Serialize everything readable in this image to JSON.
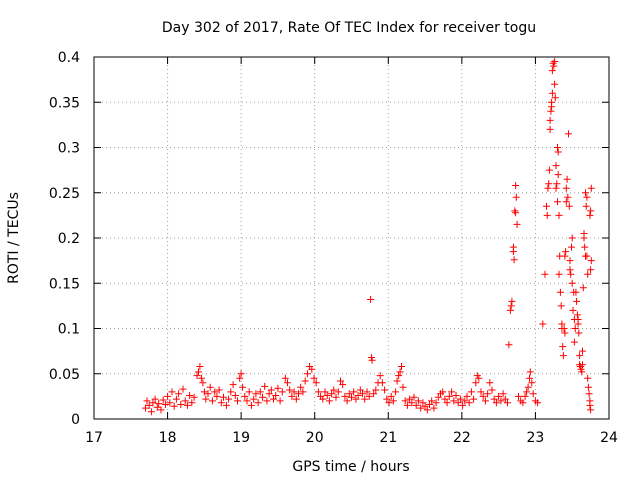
{
  "chart_data": {
    "type": "scatter",
    "title": "Day 302 of 2017, Rate Of TEC Index for receiver togu",
    "xlabel": "GPS time / hours",
    "ylabel": "ROTI / TECUs",
    "xlim": [
      17,
      24
    ],
    "ylim": [
      0,
      0.4
    ],
    "x_ticks": [
      17,
      18,
      19,
      20,
      21,
      22,
      23,
      24
    ],
    "y_ticks": [
      0,
      0.05,
      0.1,
      0.15,
      0.2,
      0.25,
      0.3,
      0.35,
      0.4
    ],
    "x_tick_labels": [
      "17",
      "18",
      "19",
      "20",
      "21",
      "22",
      "23",
      "24"
    ],
    "y_tick_labels": [
      "0",
      "0.05",
      "0.1",
      "0.15",
      "0.2",
      "0.25",
      "0.3",
      "0.35",
      "0.4"
    ],
    "grid": true,
    "marker": "plus",
    "color": "#ff0000",
    "series": [
      {
        "points": [
          [
            17.7,
            0.012
          ],
          [
            17.72,
            0.02
          ],
          [
            17.75,
            0.015
          ],
          [
            17.78,
            0.008
          ],
          [
            17.8,
            0.018
          ],
          [
            17.83,
            0.022
          ],
          [
            17.86,
            0.013
          ],
          [
            17.88,
            0.017
          ],
          [
            17.91,
            0.01
          ],
          [
            17.94,
            0.021
          ],
          [
            17.97,
            0.016
          ],
          [
            18.0,
            0.025
          ],
          [
            18.03,
            0.018
          ],
          [
            18.06,
            0.03
          ],
          [
            18.09,
            0.014
          ],
          [
            18.12,
            0.022
          ],
          [
            18.15,
            0.028
          ],
          [
            18.18,
            0.016
          ],
          [
            18.21,
            0.033
          ],
          [
            18.24,
            0.02
          ],
          [
            18.27,
            0.015
          ],
          [
            18.3,
            0.026
          ],
          [
            18.33,
            0.018
          ],
          [
            18.36,
            0.024
          ],
          [
            18.4,
            0.048
          ],
          [
            18.42,
            0.052
          ],
          [
            18.44,
            0.058
          ],
          [
            18.46,
            0.045
          ],
          [
            18.48,
            0.04
          ],
          [
            18.5,
            0.03
          ],
          [
            18.52,
            0.022
          ],
          [
            18.55,
            0.028
          ],
          [
            18.58,
            0.035
          ],
          [
            18.61,
            0.02
          ],
          [
            18.64,
            0.03
          ],
          [
            18.67,
            0.025
          ],
          [
            18.7,
            0.032
          ],
          [
            18.73,
            0.018
          ],
          [
            18.76,
            0.024
          ],
          [
            18.8,
            0.015
          ],
          [
            18.83,
            0.022
          ],
          [
            18.86,
            0.03
          ],
          [
            18.89,
            0.038
          ],
          [
            18.92,
            0.026
          ],
          [
            18.95,
            0.02
          ],
          [
            18.98,
            0.045
          ],
          [
            19.0,
            0.05
          ],
          [
            19.02,
            0.035
          ],
          [
            19.05,
            0.025
          ],
          [
            19.08,
            0.02
          ],
          [
            19.11,
            0.03
          ],
          [
            19.14,
            0.015
          ],
          [
            19.17,
            0.022
          ],
          [
            19.2,
            0.028
          ],
          [
            19.23,
            0.018
          ],
          [
            19.26,
            0.03
          ],
          [
            19.29,
            0.024
          ],
          [
            19.32,
            0.036
          ],
          [
            19.35,
            0.02
          ],
          [
            19.38,
            0.028
          ],
          [
            19.41,
            0.032
          ],
          [
            19.44,
            0.022
          ],
          [
            19.47,
            0.026
          ],
          [
            19.5,
            0.034
          ],
          [
            19.53,
            0.02
          ],
          [
            19.56,
            0.03
          ],
          [
            19.6,
            0.045
          ],
          [
            19.63,
            0.04
          ],
          [
            19.66,
            0.032
          ],
          [
            19.69,
            0.025
          ],
          [
            19.72,
            0.03
          ],
          [
            19.75,
            0.022
          ],
          [
            19.78,
            0.028
          ],
          [
            19.81,
            0.035
          ],
          [
            19.84,
            0.03
          ],
          [
            19.87,
            0.042
          ],
          [
            19.9,
            0.05
          ],
          [
            19.93,
            0.058
          ],
          [
            19.96,
            0.055
          ],
          [
            19.99,
            0.045
          ],
          [
            20.02,
            0.04
          ],
          [
            20.05,
            0.03
          ],
          [
            20.08,
            0.025
          ],
          [
            20.11,
            0.022
          ],
          [
            20.14,
            0.03
          ],
          [
            20.17,
            0.026
          ],
          [
            20.2,
            0.02
          ],
          [
            20.23,
            0.028
          ],
          [
            20.26,
            0.032
          ],
          [
            20.29,
            0.024
          ],
          [
            20.32,
            0.03
          ],
          [
            20.35,
            0.042
          ],
          [
            20.38,
            0.038
          ],
          [
            20.41,
            0.025
          ],
          [
            20.44,
            0.02
          ],
          [
            20.47,
            0.028
          ],
          [
            20.5,
            0.024
          ],
          [
            20.53,
            0.03
          ],
          [
            20.56,
            0.022
          ],
          [
            20.59,
            0.026
          ],
          [
            20.62,
            0.032
          ],
          [
            20.65,
            0.028
          ],
          [
            20.68,
            0.022
          ],
          [
            20.71,
            0.03
          ],
          [
            20.74,
            0.025
          ],
          [
            20.76,
            0.132
          ],
          [
            20.77,
            0.068
          ],
          [
            20.78,
            0.065
          ],
          [
            20.8,
            0.028
          ],
          [
            20.83,
            0.032
          ],
          [
            20.86,
            0.04
          ],
          [
            20.89,
            0.048
          ],
          [
            20.92,
            0.04
          ],
          [
            20.95,
            0.032
          ],
          [
            20.98,
            0.022
          ],
          [
            21.01,
            0.018
          ],
          [
            21.04,
            0.025
          ],
          [
            21.07,
            0.02
          ],
          [
            21.1,
            0.03
          ],
          [
            21.12,
            0.042
          ],
          [
            21.14,
            0.048
          ],
          [
            21.16,
            0.052
          ],
          [
            21.18,
            0.058
          ],
          [
            21.2,
            0.035
          ],
          [
            21.23,
            0.02
          ],
          [
            21.26,
            0.015
          ],
          [
            21.29,
            0.022
          ],
          [
            21.32,
            0.018
          ],
          [
            21.35,
            0.024
          ],
          [
            21.38,
            0.015
          ],
          [
            21.41,
            0.02
          ],
          [
            21.44,
            0.012
          ],
          [
            21.47,
            0.018
          ],
          [
            21.5,
            0.014
          ],
          [
            21.53,
            0.01
          ],
          [
            21.56,
            0.016
          ],
          [
            21.59,
            0.02
          ],
          [
            21.62,
            0.012
          ],
          [
            21.65,
            0.018
          ],
          [
            21.68,
            0.024
          ],
          [
            21.71,
            0.028
          ],
          [
            21.74,
            0.03
          ],
          [
            21.77,
            0.022
          ],
          [
            21.8,
            0.018
          ],
          [
            21.83,
            0.025
          ],
          [
            21.86,
            0.03
          ],
          [
            21.89,
            0.02
          ],
          [
            21.92,
            0.026
          ],
          [
            21.95,
            0.018
          ],
          [
            21.98,
            0.022
          ],
          [
            22.01,
            0.015
          ],
          [
            22.04,
            0.02
          ],
          [
            22.07,
            0.025
          ],
          [
            22.1,
            0.018
          ],
          [
            22.13,
            0.03
          ],
          [
            22.16,
            0.022
          ],
          [
            22.19,
            0.04
          ],
          [
            22.21,
            0.048
          ],
          [
            22.23,
            0.045
          ],
          [
            22.26,
            0.03
          ],
          [
            22.29,
            0.025
          ],
          [
            22.32,
            0.02
          ],
          [
            22.35,
            0.028
          ],
          [
            22.38,
            0.04
          ],
          [
            22.41,
            0.032
          ],
          [
            22.44,
            0.022
          ],
          [
            22.47,
            0.018
          ],
          [
            22.5,
            0.025
          ],
          [
            22.53,
            0.02
          ],
          [
            22.56,
            0.028
          ],
          [
            22.59,
            0.022
          ],
          [
            22.62,
            0.018
          ],
          [
            22.64,
            0.082
          ],
          [
            22.66,
            0.12
          ],
          [
            22.67,
            0.125
          ],
          [
            22.68,
            0.13
          ],
          [
            22.7,
            0.185
          ],
          [
            22.7,
            0.19
          ],
          [
            22.71,
            0.176
          ],
          [
            22.72,
            0.23
          ],
          [
            22.73,
            0.228
          ],
          [
            22.73,
            0.258
          ],
          [
            22.74,
            0.245
          ],
          [
            22.75,
            0.215
          ],
          [
            22.77,
            0.025
          ],
          [
            22.8,
            0.02
          ],
          [
            22.83,
            0.018
          ],
          [
            22.86,
            0.025
          ],
          [
            22.88,
            0.03
          ],
          [
            22.9,
            0.035
          ],
          [
            22.92,
            0.045
          ],
          [
            22.93,
            0.052
          ],
          [
            22.95,
            0.04
          ],
          [
            22.97,
            0.028
          ],
          [
            23.0,
            0.02
          ],
          [
            23.03,
            0.018
          ],
          [
            23.1,
            0.105
          ],
          [
            23.13,
            0.16
          ],
          [
            23.15,
            0.235
          ],
          [
            23.16,
            0.225
          ],
          [
            23.17,
            0.255
          ],
          [
            23.18,
            0.26
          ],
          [
            23.19,
            0.275
          ],
          [
            23.2,
            0.32
          ],
          [
            23.2,
            0.33
          ],
          [
            23.21,
            0.34
          ],
          [
            23.22,
            0.345
          ],
          [
            23.22,
            0.35
          ],
          [
            23.23,
            0.36
          ],
          [
            23.23,
            0.385
          ],
          [
            23.24,
            0.393
          ],
          [
            23.25,
            0.39
          ],
          [
            23.26,
            0.395
          ],
          [
            23.26,
            0.37
          ],
          [
            23.27,
            0.355
          ],
          [
            23.28,
            0.28
          ],
          [
            23.28,
            0.255
          ],
          [
            23.29,
            0.26
          ],
          [
            23.3,
            0.24
          ],
          [
            23.3,
            0.3
          ],
          [
            23.31,
            0.295
          ],
          [
            23.31,
            0.27
          ],
          [
            23.32,
            0.225
          ],
          [
            23.32,
            0.16
          ],
          [
            23.33,
            0.18
          ],
          [
            23.34,
            0.14
          ],
          [
            23.35,
            0.125
          ],
          [
            23.36,
            0.105
          ],
          [
            23.36,
            0.1
          ],
          [
            23.37,
            0.08
          ],
          [
            23.38,
            0.07
          ],
          [
            23.39,
            0.1
          ],
          [
            23.4,
            0.095
          ],
          [
            23.4,
            0.18
          ],
          [
            23.41,
            0.185
          ],
          [
            23.42,
            0.24
          ],
          [
            23.42,
            0.255
          ],
          [
            23.43,
            0.265
          ],
          [
            23.44,
            0.245
          ],
          [
            23.45,
            0.315
          ],
          [
            23.46,
            0.235
          ],
          [
            23.47,
            0.175
          ],
          [
            23.47,
            0.165
          ],
          [
            23.48,
            0.16
          ],
          [
            23.49,
            0.19
          ],
          [
            23.5,
            0.2
          ],
          [
            23.5,
            0.15
          ],
          [
            23.51,
            0.12
          ],
          [
            23.52,
            0.14
          ],
          [
            23.53,
            0.11
          ],
          [
            23.53,
            0.085
          ],
          [
            23.54,
            0.1
          ],
          [
            23.55,
            0.14
          ],
          [
            23.56,
            0.13
          ],
          [
            23.57,
            0.115
          ],
          [
            23.58,
            0.105
          ],
          [
            23.58,
            0.11
          ],
          [
            23.59,
            0.095
          ],
          [
            23.6,
            0.07
          ],
          [
            23.6,
            0.06
          ],
          [
            23.61,
            0.058
          ],
          [
            23.62,
            0.055
          ],
          [
            23.63,
            0.052
          ],
          [
            23.64,
            0.06
          ],
          [
            23.64,
            0.075
          ],
          [
            23.65,
            0.145
          ],
          [
            23.66,
            0.2
          ],
          [
            23.66,
            0.205
          ],
          [
            23.67,
            0.19
          ],
          [
            23.68,
            0.18
          ],
          [
            23.68,
            0.25
          ],
          [
            23.69,
            0.235
          ],
          [
            23.7,
            0.245
          ],
          [
            23.7,
            0.18
          ],
          [
            23.71,
            0.16
          ],
          [
            23.71,
            0.045
          ],
          [
            23.72,
            0.035
          ],
          [
            23.73,
            0.028
          ],
          [
            23.74,
            0.02
          ],
          [
            23.74,
            0.015
          ],
          [
            23.75,
            0.01
          ],
          [
            23.75,
            0.165
          ],
          [
            23.76,
            0.175
          ],
          [
            23.76,
            0.255
          ],
          [
            23.75,
            0.23
          ],
          [
            23.74,
            0.225
          ]
        ]
      }
    ]
  }
}
